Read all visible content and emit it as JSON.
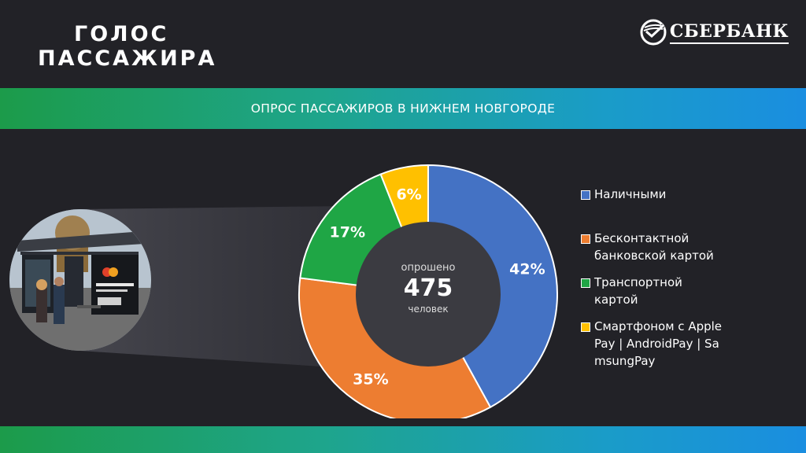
{
  "header": {
    "title_line1": "ГОЛОС",
    "title_line2": "ПАССАЖИРА",
    "logo_text": "СБЕРБАНК"
  },
  "banner": {
    "text": "ОПРОС ПАССАЖИРОВ В НИЖНЕМ НОВГОРОДЕ"
  },
  "center": {
    "top_label": "опрошено",
    "number": "475",
    "bottom_label": "человек"
  },
  "colors": {
    "background": "#222227",
    "accent_green": "#1c9b4a",
    "accent_blue": "#1a8ee0"
  },
  "chart_data": {
    "type": "pie",
    "subtype": "donut",
    "legend_position": "right",
    "series": [
      {
        "name": "Наличными",
        "value": 42,
        "label": "42%",
        "color": "#4472C4"
      },
      {
        "name": "Бесконтактной банковской картой",
        "value": 35,
        "label": "35%",
        "color": "#ED7D31"
      },
      {
        "name": "Транспортной картой",
        "value": 17,
        "label": "17%",
        "color": "#1FA645"
      },
      {
        "name": "Смартфоном с ApplePay | AndroidPay | SamsungPay",
        "value": 6,
        "label": "6%",
        "color": "#FFC000"
      }
    ]
  }
}
